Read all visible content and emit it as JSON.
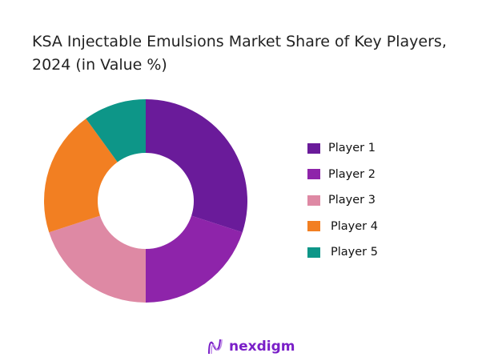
{
  "chart_data": {
    "type": "pie",
    "title": "KSA Injectable Emulsions Market Share of Key Players, 2024 (in Value %)",
    "categories": [
      "Player 1",
      "Player 2",
      "Player 3",
      "Player 4",
      "Player 5"
    ],
    "values": [
      30,
      20,
      20,
      20,
      10
    ],
    "colors": [
      "#6a1b9a",
      "#8e24aa",
      "#de89a4",
      "#f27f22",
      "#0d9688"
    ],
    "donut": true,
    "legend": "right"
  },
  "logo": {
    "text": "nexdigm"
  }
}
